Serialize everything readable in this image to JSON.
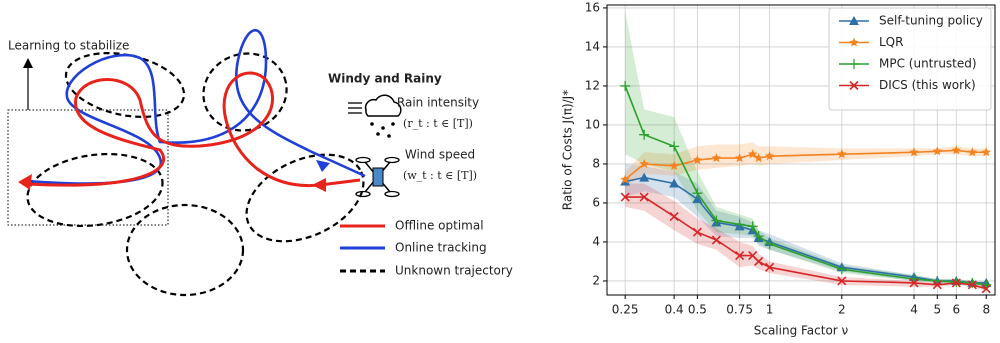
{
  "diagram": {
    "box_label": "Learning to stabilize",
    "weather_title": "Windy and Rainy",
    "rain_label": "Rain intensity",
    "rain_formula": "(r_t : t ∈ [T])",
    "wind_label": "Wind speed",
    "wind_formula": "(w_t : t ∈ [T])",
    "legend": [
      "Offline optimal",
      "Online tracking",
      "Unknown trajectory"
    ]
  },
  "chart_data": {
    "type": "line",
    "ylabel": "Ratio of Costs J(π)/J*",
    "xlabel": "Scaling Factor ν",
    "x": [
      0.25,
      0.3,
      0.4,
      0.5,
      0.6,
      0.75,
      0.85,
      0.9,
      1,
      2,
      4,
      5,
      6,
      7,
      8
    ],
    "xlim": [
      0.21,
      8.7
    ],
    "xscale": "log",
    "xticks": [
      0.25,
      0.4,
      0.5,
      0.75,
      1,
      2,
      4,
      5,
      6,
      8
    ],
    "ylim": [
      1.28,
      16.15
    ],
    "yticks": [
      2,
      4,
      6,
      8,
      10,
      12,
      14,
      16
    ],
    "grid": true,
    "legend": "upper right",
    "series": [
      {
        "name": "Self-tuning policy",
        "color": "#2f6fa8",
        "marker": "triangle",
        "values": [
          7.1,
          7.3,
          7.0,
          6.2,
          5.0,
          4.8,
          4.6,
          4.2,
          4.0,
          2.7,
          2.2,
          2.0,
          2.0,
          1.9,
          1.9
        ],
        "upper": [
          8.0,
          7.9,
          7.6,
          7.0,
          5.6,
          5.3,
          5.0,
          4.6,
          4.4,
          2.9,
          2.3,
          2.1,
          2.1,
          2.0,
          2.0
        ],
        "lower": [
          6.3,
          6.6,
          6.3,
          5.3,
          4.3,
          4.2,
          4.2,
          3.8,
          3.6,
          2.5,
          2.0,
          1.9,
          1.9,
          1.8,
          1.8
        ]
      },
      {
        "name": "LQR",
        "color": "#f5821f",
        "marker": "star",
        "values": [
          7.2,
          8.0,
          7.9,
          8.2,
          8.3,
          8.3,
          8.5,
          8.3,
          8.4,
          8.5,
          8.6,
          8.65,
          8.7,
          8.6,
          8.6
        ],
        "upper": [
          7.6,
          8.6,
          8.5,
          8.9,
          9.0,
          9.0,
          9.1,
          8.9,
          8.9,
          8.8,
          8.8,
          8.8,
          8.9,
          8.8,
          8.8
        ],
        "lower": [
          6.8,
          7.5,
          7.4,
          7.7,
          7.8,
          7.9,
          8.0,
          7.9,
          8.0,
          8.2,
          8.4,
          8.5,
          8.5,
          8.4,
          8.4
        ]
      },
      {
        "name": "MPC  (untrusted)",
        "color": "#2ca02c",
        "marker": "plus",
        "values": [
          12.0,
          9.5,
          8.9,
          6.5,
          5.1,
          4.9,
          4.8,
          4.3,
          3.9,
          2.6,
          2.1,
          2.0,
          1.95,
          1.9,
          1.8
        ],
        "upper": [
          15.8,
          10.8,
          10.4,
          7.6,
          5.8,
          5.4,
          5.2,
          4.6,
          4.2,
          2.8,
          2.3,
          2.1,
          2.1,
          2.0,
          1.9
        ],
        "lower": [
          8.5,
          8.0,
          7.6,
          5.6,
          4.5,
          4.4,
          4.3,
          3.9,
          3.6,
          2.4,
          2.0,
          1.9,
          1.8,
          1.8,
          1.7
        ]
      },
      {
        "name": "DICS  (this work)",
        "color": "#d62728",
        "marker": "x",
        "values": [
          6.3,
          6.3,
          5.3,
          4.5,
          4.1,
          3.3,
          3.3,
          3.0,
          2.7,
          2.0,
          1.9,
          1.8,
          1.9,
          1.8,
          1.6
        ],
        "upper": [
          7.0,
          7.0,
          6.1,
          5.2,
          4.7,
          4.0,
          3.8,
          3.4,
          3.0,
          2.2,
          2.0,
          1.9,
          2.0,
          1.9,
          1.8
        ],
        "lower": [
          5.8,
          5.6,
          4.6,
          3.9,
          3.6,
          2.7,
          2.8,
          2.6,
          2.4,
          1.8,
          1.7,
          1.7,
          1.8,
          1.7,
          1.5
        ]
      }
    ]
  }
}
